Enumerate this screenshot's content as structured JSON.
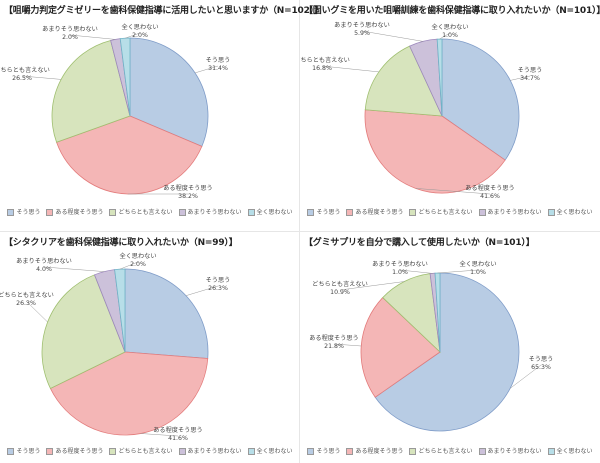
{
  "colors": [
    "#b8cce4",
    "#f4b6b6",
    "#d7e4bd",
    "#ccc1da",
    "#b7dee8"
  ],
  "chart_data": [
    {
      "type": "pie",
      "title": "【咀嚼力判定グミゼリーを歯科保健指導に活用したいと思いますか（N=102）】",
      "legend": [
        "そう思う",
        "ある程度そう思う",
        "どちらとも言えない",
        "あまりそう思わない",
        "全く思わない"
      ],
      "values": [
        31.4,
        38.2,
        26.5,
        2.0,
        2.0
      ],
      "labels": [
        "そう思う\n31.4%",
        "ある程度そう思う\n38.2%",
        "どちらとも言えない\n26.5%",
        "あまりそう思わない\n2.0%",
        "全く思わない\n2.0%"
      ]
    },
    {
      "type": "pie",
      "title": "【固いグミを用いた咀嚼訓練を歯科保健指導に取り入れたいか（N=101）】",
      "legend": [
        "そう思う",
        "ある程度そう思う",
        "どちらとも言えない",
        "あまりそう思わない",
        "全く思わない"
      ],
      "values": [
        34.7,
        41.6,
        16.8,
        5.9,
        1.0
      ],
      "labels": [
        "そう思う\n34.7%",
        "ある程度そう思う\n41.6%",
        "どちらとも言えない\n16.8%",
        "あまりそう思わない\n5.9%",
        "全く思わない\n1.0%"
      ]
    },
    {
      "type": "pie",
      "title": "【シタクリアを歯科保健指導に取り入れたいか（N=99）】",
      "legend": [
        "そう思う",
        "ある程度そう思う",
        "どちらとも言えない",
        "あまりそう思わない",
        "全く思わない"
      ],
      "values": [
        26.3,
        41.6,
        26.3,
        4.0,
        2.0
      ],
      "labels": [
        "そう思う\n26.3%",
        "ある程度そう思う\n41.6%",
        "どちらとも言えない\n26.3%",
        "あまりそう思わない\n4.0%",
        "全く思わない\n2.0%"
      ]
    },
    {
      "type": "pie",
      "title": "【グミサプリを自分で購入して使用したいか（N=101）】",
      "legend": [
        "そう思う",
        "ある程度そう思う",
        "どちらとも言えない",
        "あまりそう思わない",
        "全く思わない"
      ],
      "values": [
        65.3,
        21.8,
        10.9,
        1.0,
        1.0
      ],
      "labels": [
        "そう思う\n65.3%",
        "ある程度そう思う\n21.8%",
        "どちらとも言えない\n10.9%",
        "あまりそう思わない\n1.0%",
        "全く思わない\n1.0%"
      ]
    }
  ]
}
